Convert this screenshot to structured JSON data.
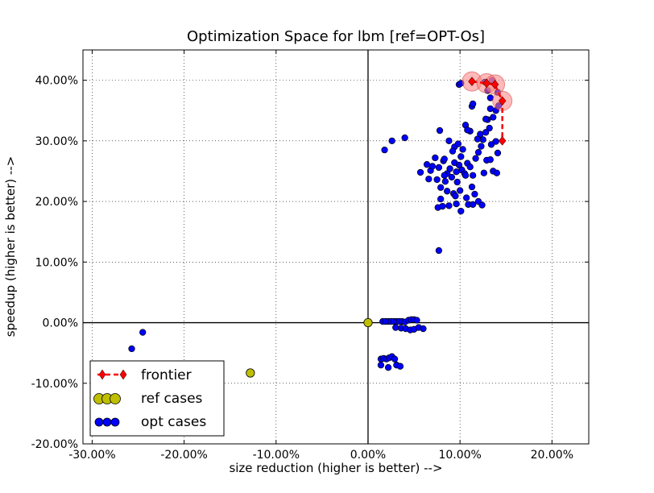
{
  "chart_data": {
    "type": "scatter",
    "title": "Optimization Space for lbm [ref=OPT-Os]",
    "xlabel": "size reduction (higher is better) -->",
    "ylabel": "speedup (higher is better) -->",
    "xlim": [
      -31,
      24
    ],
    "ylim": [
      -20,
      45
    ],
    "x_ticks": [
      -30,
      -20,
      -10,
      0,
      10,
      20
    ],
    "y_ticks": [
      -20,
      -10,
      0,
      10,
      20,
      30,
      40
    ],
    "x_tick_labels": [
      "-30.00%",
      "-20.00%",
      "-10.00%",
      "0.00%",
      "10.00%",
      "20.00%"
    ],
    "y_tick_labels": [
      "-20.00%",
      "-10.00%",
      "0.00%",
      "10.00%",
      "20.00%",
      "30.00%",
      "40.00%"
    ],
    "grid": true,
    "legend_position": "lower-left",
    "colors": {
      "frontier": "#ff0000",
      "frontier_halo": "#ff8080",
      "ref": "#bfbf00",
      "opt": "#0000ff"
    },
    "series": [
      {
        "name": "frontier",
        "style": "dashed-line-with-diamond-markers",
        "points": [
          [
            11.3,
            39.8
          ],
          [
            12.9,
            39.5
          ],
          [
            13.8,
            39.3
          ],
          [
            14.6,
            36.6
          ],
          [
            14.6,
            30.0
          ]
        ]
      },
      {
        "name": "ref cases",
        "style": "circle-markers",
        "points": [
          [
            0.0,
            0.0
          ],
          [
            -12.8,
            -8.3
          ]
        ]
      },
      {
        "name": "opt cases",
        "style": "circle-markers",
        "points": [
          [
            -25.7,
            -4.3
          ],
          [
            -24.5,
            -1.6
          ],
          [
            1.4,
            -6.0
          ],
          [
            1.7,
            -5.9
          ],
          [
            2.0,
            -6.0
          ],
          [
            2.3,
            -5.8
          ],
          [
            2.6,
            -5.6
          ],
          [
            2.9,
            -6.0
          ],
          [
            1.4,
            -7.0
          ],
          [
            2.2,
            -7.4
          ],
          [
            3.1,
            -7.0
          ],
          [
            3.5,
            -7.2
          ],
          [
            1.6,
            0.2
          ],
          [
            1.9,
            0.2
          ],
          [
            2.2,
            0.2
          ],
          [
            2.5,
            0.2
          ],
          [
            2.8,
            0.2
          ],
          [
            3.1,
            0.2
          ],
          [
            3.4,
            0.2
          ],
          [
            3.7,
            0.2
          ],
          [
            4.0,
            0.1
          ],
          [
            4.4,
            0.4
          ],
          [
            4.7,
            0.5
          ],
          [
            5.0,
            0.5
          ],
          [
            5.3,
            0.4
          ],
          [
            3.0,
            -0.8
          ],
          [
            3.6,
            -0.9
          ],
          [
            4.1,
            -1.0
          ],
          [
            4.6,
            -1.2
          ],
          [
            5.0,
            -1.1
          ],
          [
            5.5,
            -0.8
          ],
          [
            6.0,
            -1.0
          ],
          [
            1.8,
            28.5
          ],
          [
            2.6,
            30.0
          ],
          [
            4.0,
            30.5
          ],
          [
            7.8,
            31.7
          ],
          [
            8.8,
            30.0
          ],
          [
            9.4,
            29.0
          ],
          [
            9.8,
            29.5
          ],
          [
            10.3,
            28.6
          ],
          [
            5.7,
            24.8
          ],
          [
            6.4,
            26.1
          ],
          [
            6.8,
            25.1
          ],
          [
            7.0,
            25.8
          ],
          [
            7.3,
            27.2
          ],
          [
            7.7,
            25.6
          ],
          [
            8.2,
            26.7
          ],
          [
            8.6,
            24.6
          ],
          [
            8.9,
            25.4
          ],
          [
            9.1,
            24.0
          ],
          [
            9.4,
            26.4
          ],
          [
            9.6,
            24.9
          ],
          [
            9.9,
            26.0
          ],
          [
            10.2,
            25.2
          ],
          [
            10.5,
            24.6
          ],
          [
            10.8,
            26.3
          ],
          [
            11.1,
            25.7
          ],
          [
            11.4,
            24.3
          ],
          [
            11.7,
            27.1
          ],
          [
            12.0,
            28.1
          ],
          [
            6.6,
            23.7
          ],
          [
            7.5,
            23.6
          ],
          [
            8.3,
            24.3
          ],
          [
            9.7,
            23.2
          ],
          [
            7.9,
            22.3
          ],
          [
            8.6,
            21.7
          ],
          [
            9.3,
            21.3
          ],
          [
            10.0,
            21.8
          ],
          [
            10.7,
            20.6
          ],
          [
            11.3,
            22.4
          ],
          [
            11.6,
            21.2
          ],
          [
            12.0,
            20.0
          ],
          [
            7.6,
            19.0
          ],
          [
            8.1,
            19.2
          ],
          [
            8.8,
            19.3
          ],
          [
            9.6,
            19.6
          ],
          [
            10.1,
            18.4
          ],
          [
            10.9,
            19.5
          ],
          [
            11.4,
            19.5
          ],
          [
            12.4,
            19.4
          ],
          [
            7.9,
            20.4
          ],
          [
            9.5,
            20.9
          ],
          [
            10.6,
            24.3
          ],
          [
            12.9,
            26.8
          ],
          [
            13.3,
            26.9
          ],
          [
            13.6,
            25.0
          ],
          [
            14.0,
            24.7
          ],
          [
            12.6,
            24.7
          ],
          [
            13.4,
            29.4
          ],
          [
            12.5,
            30.2
          ],
          [
            12.3,
            29.1
          ],
          [
            12.8,
            31.4
          ],
          [
            13.2,
            32.1
          ],
          [
            11.9,
            30.3
          ],
          [
            12.2,
            31.1
          ],
          [
            11.1,
            31.6
          ],
          [
            10.6,
            32.6
          ],
          [
            10.8,
            31.8
          ],
          [
            13.9,
            29.9
          ],
          [
            14.1,
            28.0
          ],
          [
            13.0,
            33.5
          ],
          [
            13.6,
            33.9
          ],
          [
            12.8,
            33.6
          ],
          [
            13.3,
            35.3
          ],
          [
            13.9,
            35.0
          ],
          [
            14.2,
            35.8
          ],
          [
            13.3,
            37.1
          ],
          [
            13.0,
            38.3
          ],
          [
            11.3,
            35.7
          ],
          [
            11.4,
            36.1
          ],
          [
            9.9,
            39.3
          ],
          [
            10.1,
            39.5
          ],
          [
            12.7,
            39.7
          ],
          [
            13.5,
            40.0
          ],
          [
            14.1,
            38.0
          ],
          [
            9.2,
            28.3
          ],
          [
            8.3,
            27.0
          ],
          [
            10.1,
            27.4
          ],
          [
            8.4,
            23.3
          ],
          [
            7.7,
            11.9
          ]
        ]
      }
    ],
    "legend": [
      {
        "label": "frontier"
      },
      {
        "label": "ref cases"
      },
      {
        "label": "opt cases"
      }
    ]
  }
}
